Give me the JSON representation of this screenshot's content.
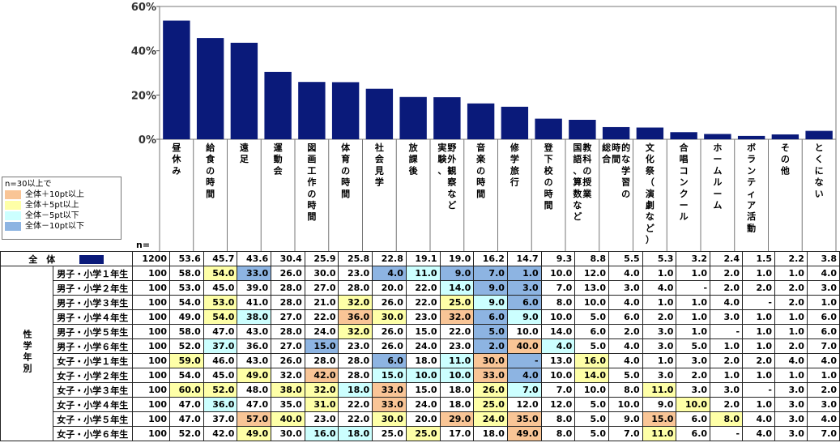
{
  "legend": {
    "title": "n=30以上で",
    "items": [
      {
        "label": "全体＋10pt以上",
        "color": "#f9c596"
      },
      {
        "label": "全体＋5pt以上",
        "color": "#feffa7"
      },
      {
        "label": "全体－5pt以下",
        "color": "#ccffff"
      },
      {
        "label": "全体－10pt以下",
        "color": "#8db4e2"
      }
    ]
  },
  "table": {
    "n_header": "n=",
    "total_label": "全　体",
    "total_n": "1200",
    "group_label": "性学年別",
    "rows": [
      {
        "label": "男子・小学１年生",
        "n": "100",
        "values": [
          "58.0",
          "54.0",
          "33.0",
          "26.0",
          "30.0",
          "23.0",
          "4.0",
          "11.0",
          "9.0",
          "7.0",
          "1.0",
          "10.0",
          "12.0",
          "4.0",
          "1.0",
          "1.0",
          "2.0",
          "1.0",
          "1.0",
          "4.0"
        ],
        "marks": [
          "",
          "y",
          "b",
          "",
          "",
          "",
          "b",
          "c",
          "b",
          "b",
          "b",
          "",
          "",
          "",
          "",
          "",
          "",
          "",
          "",
          ""
        ]
      },
      {
        "label": "男子・小学２年生",
        "n": "100",
        "values": [
          "53.0",
          "45.0",
          "39.0",
          "28.0",
          "27.0",
          "28.0",
          "20.0",
          "22.0",
          "14.0",
          "9.0",
          "3.0",
          "7.0",
          "13.0",
          "3.0",
          "4.0",
          "-",
          "2.0",
          "2.0",
          "2.0",
          "3.0"
        ],
        "marks": [
          "",
          "",
          "",
          "",
          "",
          "",
          "",
          "",
          "c",
          "b",
          "b",
          "",
          "",
          "",
          "",
          "",
          "",
          "",
          "",
          ""
        ]
      },
      {
        "label": "男子・小学３年生",
        "n": "100",
        "values": [
          "54.0",
          "53.0",
          "41.0",
          "28.0",
          "21.0",
          "32.0",
          "26.0",
          "22.0",
          "25.0",
          "9.0",
          "6.0",
          "8.0",
          "10.0",
          "4.0",
          "1.0",
          "1.0",
          "4.0",
          "-",
          "2.0",
          "1.0"
        ],
        "marks": [
          "",
          "y",
          "",
          "",
          "",
          "y",
          "",
          "",
          "y",
          "c",
          "b",
          "",
          "",
          "",
          "",
          "",
          "",
          "",
          "",
          ""
        ]
      },
      {
        "label": "男子・小学４年生",
        "n": "100",
        "values": [
          "49.0",
          "54.0",
          "38.0",
          "27.0",
          "22.0",
          "36.0",
          "30.0",
          "23.0",
          "32.0",
          "6.0",
          "9.0",
          "10.0",
          "5.0",
          "6.0",
          "2.0",
          "1.0",
          "3.0",
          "1.0",
          "1.0",
          "6.0"
        ],
        "marks": [
          "",
          "y",
          "c",
          "",
          "",
          "o",
          "y",
          "",
          "o",
          "b",
          "c",
          "",
          "",
          "",
          "",
          "",
          "",
          "",
          "",
          ""
        ]
      },
      {
        "label": "男子・小学５年生",
        "n": "100",
        "values": [
          "58.0",
          "47.0",
          "43.0",
          "28.0",
          "24.0",
          "32.0",
          "26.0",
          "15.0",
          "22.0",
          "5.0",
          "10.0",
          "14.0",
          "6.0",
          "2.0",
          "3.0",
          "1.0",
          "-",
          "1.0",
          "1.0",
          "6.0"
        ],
        "marks": [
          "",
          "",
          "",
          "",
          "",
          "y",
          "",
          "",
          "",
          "b",
          "",
          "",
          "",
          "",
          "",
          "",
          "",
          "",
          "",
          ""
        ]
      },
      {
        "label": "男子・小学６年生",
        "n": "100",
        "values": [
          "52.0",
          "37.0",
          "36.0",
          "27.0",
          "15.0",
          "23.0",
          "26.0",
          "24.0",
          "23.0",
          "2.0",
          "40.0",
          "4.0",
          "5.0",
          "4.0",
          "3.0",
          "5.0",
          "1.0",
          "1.0",
          "2.0",
          "7.0"
        ],
        "marks": [
          "",
          "c",
          "",
          "",
          "b",
          "",
          "",
          "",
          "",
          "b",
          "o",
          "c",
          "",
          "",
          "",
          "",
          "",
          "",
          "",
          ""
        ]
      },
      {
        "label": "女子・小学１年生",
        "n": "100",
        "values": [
          "59.0",
          "46.0",
          "43.0",
          "26.0",
          "28.0",
          "28.0",
          "6.0",
          "18.0",
          "11.0",
          "30.0",
          "-",
          "13.0",
          "16.0",
          "4.0",
          "1.0",
          "3.0",
          "2.0",
          "2.0",
          "4.0",
          "4.0"
        ],
        "marks": [
          "y",
          "",
          "",
          "",
          "",
          "",
          "b",
          "",
          "c",
          "o",
          "b",
          "",
          "y",
          "",
          "",
          "",
          "",
          "",
          "",
          ""
        ]
      },
      {
        "label": "女子・小学２年生",
        "n": "100",
        "values": [
          "54.0",
          "45.0",
          "49.0",
          "32.0",
          "42.0",
          "28.0",
          "15.0",
          "10.0",
          "10.0",
          "33.0",
          "4.0",
          "10.0",
          "14.0",
          "5.0",
          "3.0",
          "2.0",
          "1.0",
          "1.0",
          "1.0",
          "1.0"
        ],
        "marks": [
          "",
          "",
          "y",
          "",
          "o",
          "",
          "c",
          "c",
          "c",
          "o",
          "b",
          "",
          "y",
          "",
          "",
          "",
          "",
          "",
          "",
          ""
        ]
      },
      {
        "label": "女子・小学３年生",
        "n": "100",
        "values": [
          "60.0",
          "52.0",
          "48.0",
          "38.0",
          "32.0",
          "18.0",
          "33.0",
          "15.0",
          "18.0",
          "26.0",
          "7.0",
          "7.0",
          "10.0",
          "8.0",
          "11.0",
          "3.0",
          "3.0",
          "-",
          "3.0",
          "2.0"
        ],
        "marks": [
          "y",
          "y",
          "",
          "y",
          "y",
          "c",
          "o",
          "",
          "",
          "y",
          "c",
          "",
          "",
          "",
          "y",
          "",
          "",
          "",
          "",
          ""
        ]
      },
      {
        "label": "女子・小学４年生",
        "n": "100",
        "values": [
          "47.0",
          "36.0",
          "47.0",
          "35.0",
          "31.0",
          "22.0",
          "33.0",
          "24.0",
          "18.0",
          "25.0",
          "12.0",
          "12.0",
          "5.0",
          "10.0",
          "9.0",
          "10.0",
          "2.0",
          "1.0",
          "3.0",
          "3.0"
        ],
        "marks": [
          "",
          "c",
          "",
          "",
          "y",
          "",
          "o",
          "",
          "",
          "y",
          "",
          "",
          "",
          "",
          "",
          "y",
          "",
          "",
          "",
          ""
        ]
      },
      {
        "label": "女子・小学５年生",
        "n": "100",
        "values": [
          "47.0",
          "37.0",
          "57.0",
          "40.0",
          "23.0",
          "22.0",
          "30.0",
          "20.0",
          "29.0",
          "24.0",
          "35.0",
          "8.0",
          "5.0",
          "9.0",
          "15.0",
          "6.0",
          "8.0",
          "4.0",
          "3.0",
          "4.0"
        ],
        "marks": [
          "",
          "",
          "o",
          "y",
          "",
          "",
          "y",
          "",
          "o",
          "y",
          "o",
          "",
          "",
          "",
          "o",
          "",
          "y",
          "",
          "",
          ""
        ]
      },
      {
        "label": "女子・小学６年生",
        "n": "100",
        "values": [
          "52.0",
          "42.0",
          "49.0",
          "30.0",
          "16.0",
          "18.0",
          "25.0",
          "25.0",
          "17.0",
          "18.0",
          "49.0",
          "8.0",
          "5.0",
          "7.0",
          "11.0",
          "6.0",
          "-",
          "4.0",
          "3.0",
          "7.0"
        ],
        "marks": [
          "",
          "",
          "y",
          "",
          "c",
          "c",
          "",
          "y",
          "",
          "",
          "o",
          "",
          "",
          "",
          "y",
          "",
          "",
          "",
          "",
          ""
        ]
      }
    ]
  },
  "colors": {
    "bar": "#0a1a7a",
    "orange": "#f9c596",
    "yellow": "#feffa7",
    "cyan": "#ccffff",
    "blue": "#8db4e2"
  },
  "chart_data": {
    "type": "bar",
    "categories": [
      "昼休み",
      "給食の時間",
      "遠足",
      "運動会",
      "図画工作の時間",
      "体育の時間",
      "社会見学",
      "放課後",
      "実験、野外観察など",
      "音楽の時間",
      "修学旅行",
      "登下校の時間",
      "国語、算数など教科の授業",
      "総合的な学習の時間",
      "文化祭（演劇など）",
      "合唱コンクール",
      "ホームルーム",
      "ボランティア活動",
      "その他",
      "とくにない"
    ],
    "values": [
      53.6,
      45.7,
      43.6,
      30.4,
      25.9,
      25.8,
      22.8,
      19.1,
      19.0,
      16.2,
      14.7,
      9.3,
      8.8,
      5.5,
      5.3,
      3.2,
      2.4,
      1.5,
      2.2,
      3.8
    ],
    "value_labels": [
      "53.6",
      "45.7",
      "43.6",
      "30.4",
      "25.9",
      "25.8",
      "22.8",
      "19.1",
      "19.0",
      "16.2",
      "14.7",
      "9.3",
      "8.8",
      "5.5",
      "5.3",
      "3.2",
      "2.4",
      "1.5",
      "2.2",
      "3.8"
    ],
    "category_lines": [
      [
        "昼休み"
      ],
      [
        "給食の時間"
      ],
      [
        "遠足"
      ],
      [
        "運動会"
      ],
      [
        "図画工作の時間"
      ],
      [
        "体育の時間"
      ],
      [
        "社会見学"
      ],
      [
        "放課後"
      ],
      [
        "野外観察など",
        "実験、"
      ],
      [
        "音楽の時間"
      ],
      [
        "修学旅行"
      ],
      [
        "登下校の時間"
      ],
      [
        "教科の授業",
        "国語、算数など"
      ],
      [
        "的な学習の",
        "時間",
        "総合"
      ],
      [
        "文化祭（演劇など）"
      ],
      [
        "合唱コンクール"
      ],
      [
        "ホームルーム"
      ],
      [
        "ボランティア活動"
      ],
      [
        "その他"
      ],
      [
        "とくにない"
      ]
    ],
    "yticks": [
      "0%",
      "20%",
      "40%",
      "60%"
    ],
    "ylim": [
      0,
      60
    ]
  }
}
